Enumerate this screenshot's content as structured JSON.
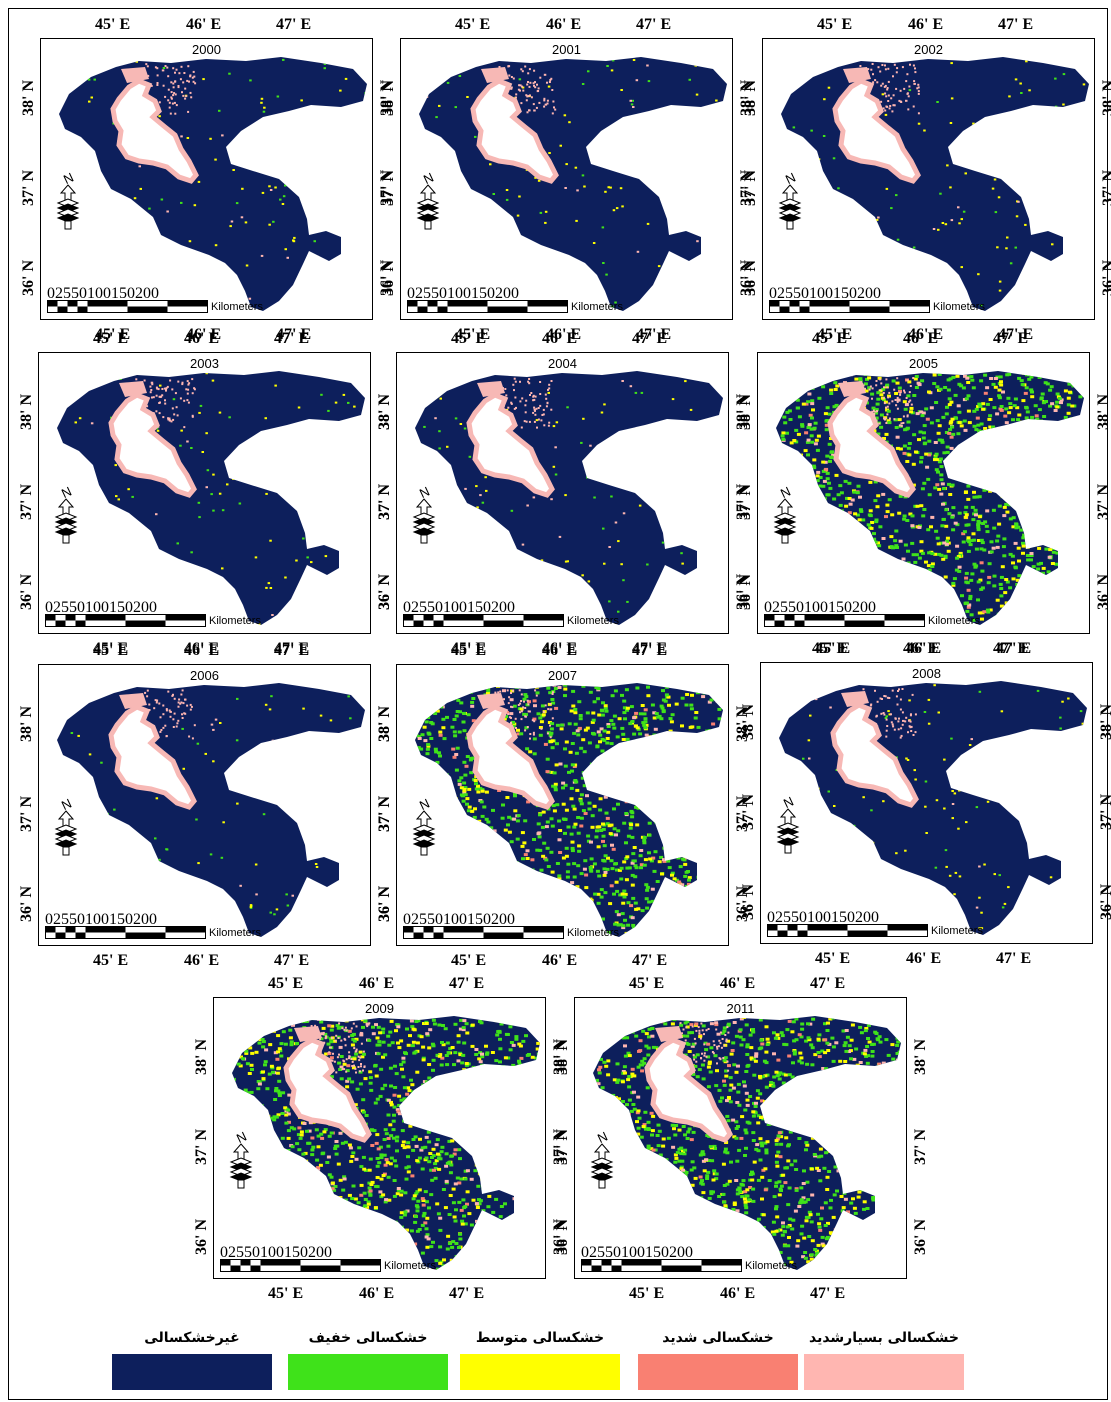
{
  "lon_labels": [
    "45' E",
    "46' E",
    "47' E"
  ],
  "lat_labels": [
    "38' N",
    "37' N",
    "36' N"
  ],
  "scale_bar": {
    "ticks": [
      "0",
      "25",
      "50",
      "100",
      "150",
      "200"
    ],
    "unit": "Kilometers"
  },
  "north_arrow": {
    "letter": "N",
    "icon": "north-arrow-icon"
  },
  "maps": [
    {
      "year": "2000",
      "drought_level": "low"
    },
    {
      "year": "2001",
      "drought_level": "low"
    },
    {
      "year": "2002",
      "drought_level": "low"
    },
    {
      "year": "2003",
      "drought_level": "low"
    },
    {
      "year": "2004",
      "drought_level": "low"
    },
    {
      "year": "2005",
      "drought_level": "high"
    },
    {
      "year": "2006",
      "drought_level": "low"
    },
    {
      "year": "2007",
      "drought_level": "high"
    },
    {
      "year": "2008",
      "drought_level": "low"
    },
    {
      "year": "2009",
      "drought_level": "high"
    },
    {
      "year": "2011",
      "drought_level": "high"
    }
  ],
  "legend": [
    {
      "label": "غیرخشکسالی",
      "color": "#0d1f5c"
    },
    {
      "label": "خشکسالی خفیف",
      "color": "#3fe21a"
    },
    {
      "label": "خشکسالی متوسط",
      "color": "#ffff00"
    },
    {
      "label": "خشکسالی شدید",
      "color": "#f98072"
    },
    {
      "label": "خشکسالی بسیارشدید",
      "color": "#ffb6b1"
    }
  ],
  "colors": {
    "non_drought": "#0d1f5c",
    "lake": "#ffffff",
    "lake_edge": "#f7b8b5"
  }
}
